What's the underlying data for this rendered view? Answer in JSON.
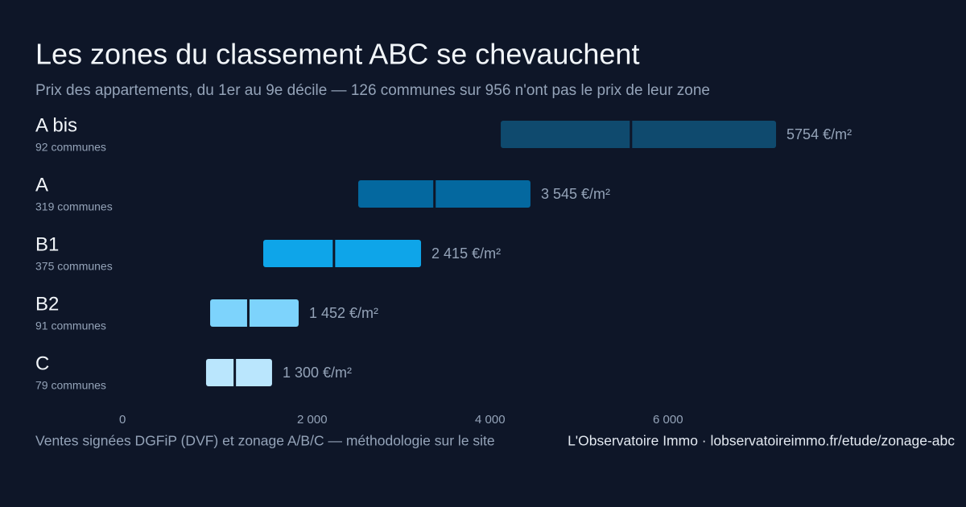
{
  "chart_data": {
    "type": "range_bar",
    "title": "Les zones du classement ABC se chevauchent",
    "subtitle": "Prix des appartements, du 1er au 9e décile — 126 communes sur 956 n'ont pas le prix de leur zone",
    "categories": [
      "A bis",
      "A",
      "B1",
      "B2",
      "C"
    ],
    "category_notes": [
      "92 communes",
      "319 communes",
      "375 communes",
      "91 communes",
      "79 communes"
    ],
    "low": [
      4290,
      2688,
      1620,
      1023,
      977
    ],
    "high": [
      7385,
      4624,
      3394,
      2018,
      1719
    ],
    "median": [
      5754,
      3545,
      2415,
      1452,
      1300
    ],
    "value_labels": [
      "5754 €/m²",
      "3 545 €/m²",
      "2 415 €/m²",
      "1 452 €/m²",
      "1 300 €/m²"
    ],
    "colors": [
      "#0f4a6e",
      "#04689f",
      "#0ea5e9",
      "#7dd3fc",
      "#bae6fd"
    ],
    "xlim": [
      0,
      8000
    ],
    "xticks": [
      0,
      {
        "value": 2000,
        "label": "2 000"
      },
      {
        "value": 4000,
        "label": "4 000"
      },
      {
        "value": 6000,
        "label": "6 000"
      }
    ],
    "source": "Ventes signées DGFiP (DVF) et zonage A/B/C — méthodologie sur le site",
    "credit": "L'Observatoire Immo · lobservatoireimmo.fr/etude/zonage-abc"
  }
}
